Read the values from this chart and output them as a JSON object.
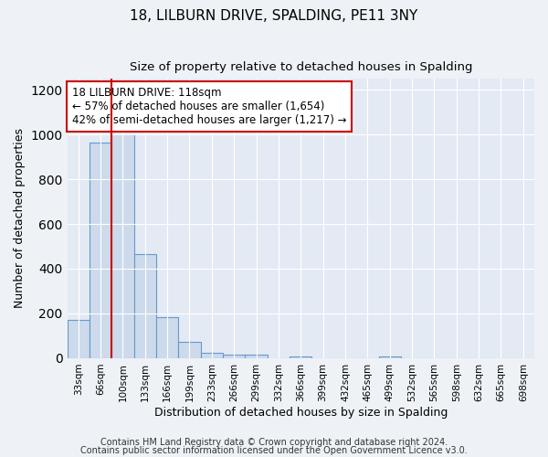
{
  "title1": "18, LILBURN DRIVE, SPALDING, PE11 3NY",
  "title2": "Size of property relative to detached houses in Spalding",
  "xlabel": "Distribution of detached houses by size in Spalding",
  "ylabel": "Number of detached properties",
  "bin_labels": [
    "33sqm",
    "66sqm",
    "100sqm",
    "133sqm",
    "166sqm",
    "199sqm",
    "233sqm",
    "266sqm",
    "299sqm",
    "332sqm",
    "366sqm",
    "399sqm",
    "432sqm",
    "465sqm",
    "499sqm",
    "532sqm",
    "565sqm",
    "598sqm",
    "632sqm",
    "665sqm",
    "698sqm"
  ],
  "bar_values": [
    170,
    965,
    1000,
    465,
    185,
    75,
    25,
    15,
    15,
    0,
    10,
    0,
    0,
    0,
    10,
    0,
    0,
    0,
    0,
    0,
    0
  ],
  "bar_color": "#ccdaeb",
  "bar_edge_color": "#6699cc",
  "property_line_color": "#cc0000",
  "property_line_bin": 2,
  "annotation_line1": "18 LILBURN DRIVE: 118sqm",
  "annotation_line2": "← 57% of detached houses are smaller (1,654)",
  "annotation_line3": "42% of semi-detached houses are larger (1,217) →",
  "annotation_box_edge_color": "#cc0000",
  "annotation_box_face_color": "#ffffff",
  "ylim": [
    0,
    1250
  ],
  "yticks": [
    0,
    200,
    400,
    600,
    800,
    1000,
    1200
  ],
  "footer1": "Contains HM Land Registry data © Crown copyright and database right 2024.",
  "footer2": "Contains public sector information licensed under the Open Government Licence v3.0.",
  "background_color": "#eef2f7",
  "plot_background_color": "#e4eaf3",
  "grid_color": "#ffffff",
  "title1_fontsize": 11,
  "title2_fontsize": 9.5,
  "annotation_fontsize": 8.5,
  "axis_label_fontsize": 9,
  "tick_fontsize": 7.5,
  "footer_fontsize": 7
}
